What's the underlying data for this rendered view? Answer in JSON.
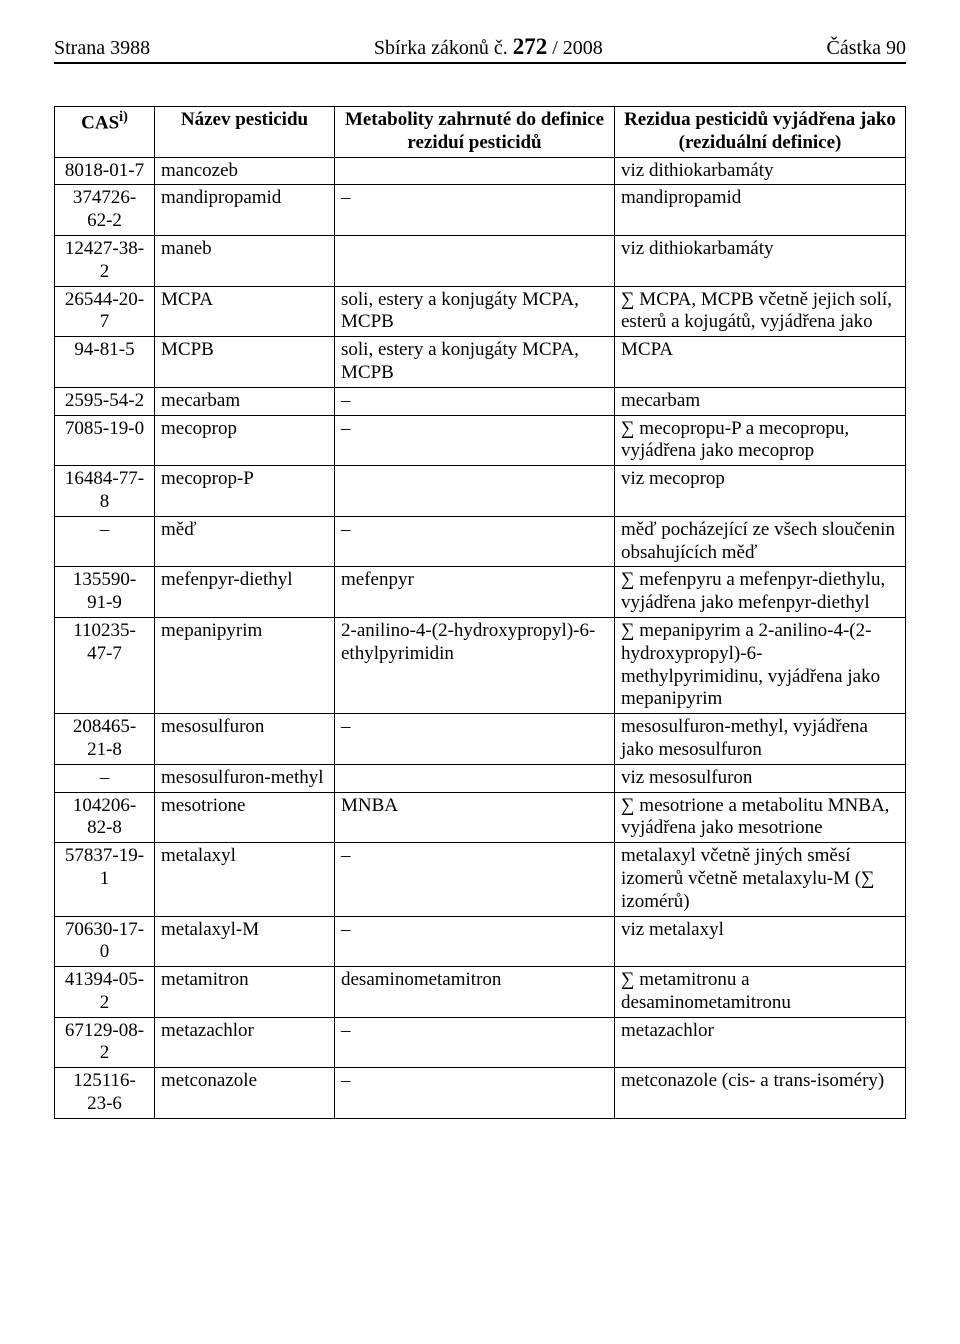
{
  "header": {
    "left": "Strana 3988",
    "journal": "Sbírka zákonů č. ",
    "issue": "272",
    "tail": " / 2008",
    "right": "Částka 90"
  },
  "columns": {
    "c0_main": "CAS",
    "c0_sup": "i)",
    "c1": "Název pesticidu",
    "c2": "Metabolity zahrnuté do definice reziduí pesticidů",
    "c3": "Rezidua pesticidů vyjádřena jako (reziduální definice)"
  },
  "rows": [
    {
      "cas": "8018-01-7",
      "name": "mancozeb",
      "met": "",
      "res": "viz dithiokarbamáty"
    },
    {
      "cas": "374726-62-2",
      "name": "mandipropamid",
      "met": "–",
      "res": "mandipropamid"
    },
    {
      "cas": "12427-38-2",
      "name": "maneb",
      "met": "",
      "res": "viz dithiokarbamáty"
    },
    {
      "cas": "26544-20-7",
      "name": "MCPA",
      "met": "soli, estery a konjugáty MCPA, MCPB",
      "res": "∑ MCPA, MCPB včetně jejich solí, esterů a kojugátů, vyjádřena jako"
    },
    {
      "cas": "94-81-5",
      "name": "MCPB",
      "met": "soli, estery a konjugáty MCPA, MCPB",
      "res": "MCPA"
    },
    {
      "cas": "2595-54-2",
      "name": "mecarbam",
      "met": "–",
      "res": "mecarbam"
    },
    {
      "cas": "7085-19-0",
      "name": "mecoprop",
      "met": "–",
      "res": "∑ mecopropu-P a mecopropu, vyjádřena jako mecoprop"
    },
    {
      "cas": "16484-77-8",
      "name": "mecoprop-P",
      "met": "",
      "res": "viz mecoprop"
    },
    {
      "cas": "–",
      "name": "měď",
      "met": "–",
      "res": "měď pocházející ze všech sloučenin obsahujících měď"
    },
    {
      "cas": "135590-91-9",
      "name": "mefenpyr-diethyl",
      "met": "mefenpyr",
      "res": "∑ mefenpyru a mefenpyr-diethylu, vyjádřena jako mefenpyr-diethyl"
    },
    {
      "cas": "110235-47-7",
      "name": "mepanipyrim",
      "met": "2-anilino-4-(2-hydroxypropyl)-6-ethylpyrimidin",
      "res": "∑ mepanipyrim a 2-anilino-4-(2-hydroxypropyl)-6-methylpyrimidinu, vyjádřena jako mepanipyrim"
    },
    {
      "cas": "208465-21-8",
      "name": "mesosulfuron",
      "met": "–",
      "res": "mesosulfuron-methyl, vyjádřena jako mesosulfuron"
    },
    {
      "cas": "–",
      "name": "mesosulfuron-methyl",
      "met": "",
      "res": "viz mesosulfuron"
    },
    {
      "cas": "104206-82-8",
      "name": "mesotrione",
      "met": "MNBA",
      "res": "∑ mesotrione a metabolitu MNBA, vyjádřena jako mesotrione"
    },
    {
      "cas": "57837-19-1",
      "name": "metalaxyl",
      "met": "–",
      "res": "metalaxyl včetně jiných směsí izomerů včetně metalaxylu-M (∑ izomérů)"
    },
    {
      "cas": "70630-17-0",
      "name": "metalaxyl-M",
      "met": "–",
      "res": "viz metalaxyl"
    },
    {
      "cas": "41394-05-2",
      "name": "metamitron",
      "met": "desaminometamitron",
      "res": "∑ metamitronu a desaminometamitronu"
    },
    {
      "cas": "67129-08-2",
      "name": "metazachlor",
      "met": "–",
      "res": "metazachlor"
    },
    {
      "cas": "125116-23-6",
      "name": "metconazole",
      "met": "–",
      "res": "metconazole (cis- a trans-isoméry)"
    }
  ]
}
